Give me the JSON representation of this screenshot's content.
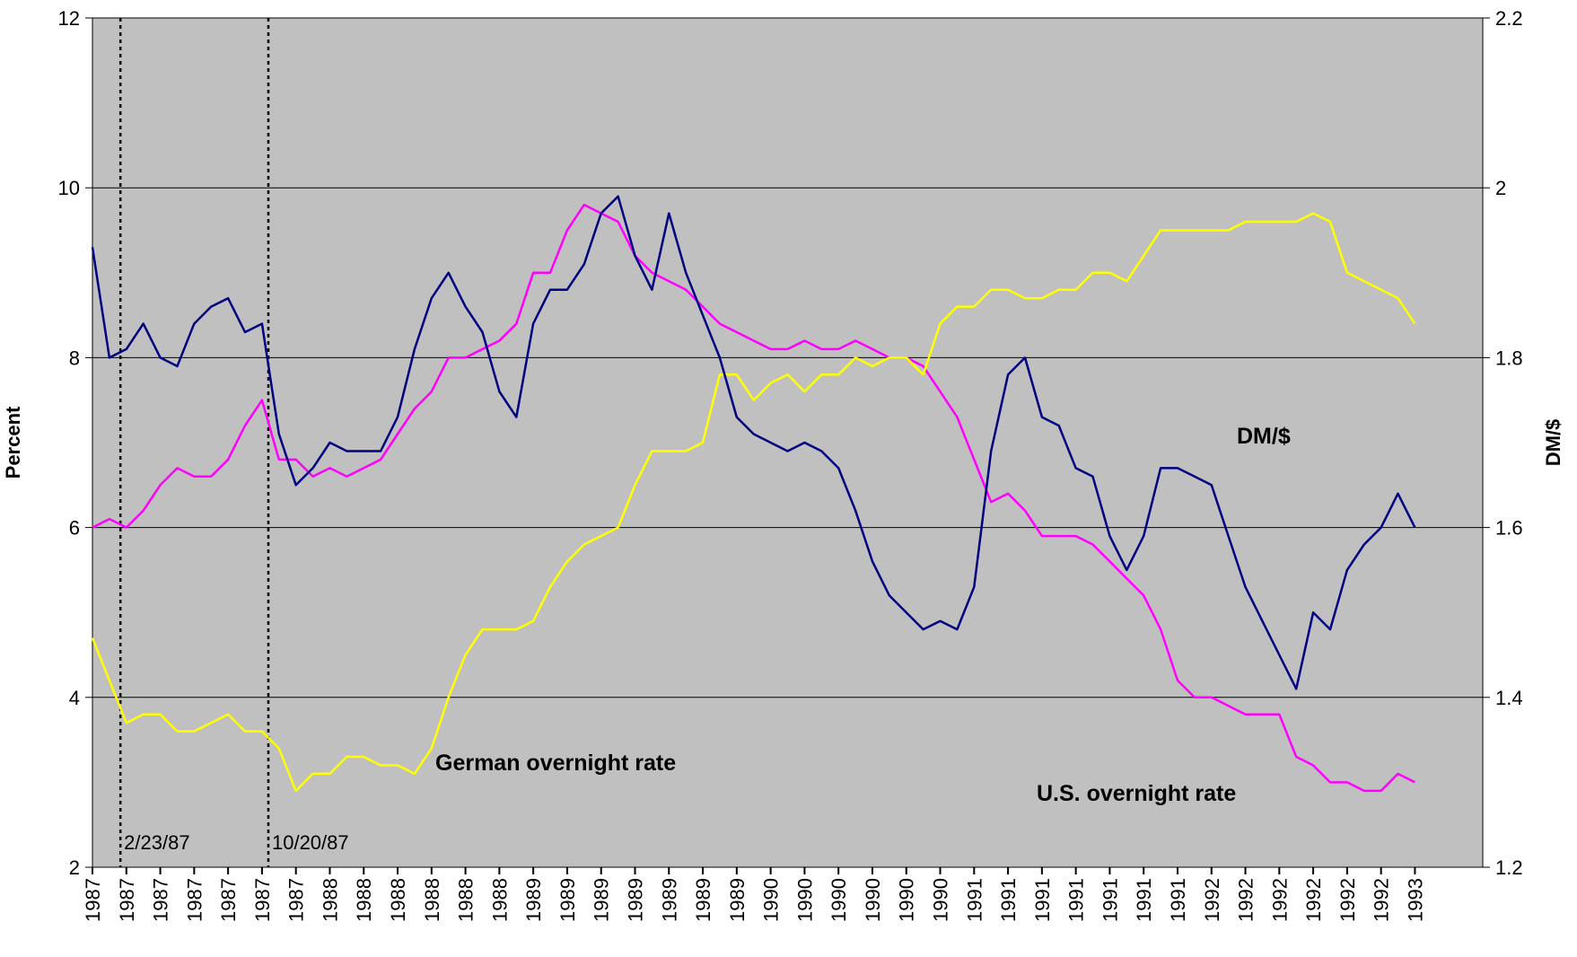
{
  "chart_data": {
    "type": "line",
    "y_label": "Percent",
    "y2_label": "DM/$",
    "x": [
      0,
      4,
      8,
      12,
      16,
      20,
      24,
      28,
      32,
      36,
      40,
      44,
      48,
      52,
      56,
      60,
      64,
      68,
      72,
      76,
      80,
      84,
      88,
      92,
      96,
      100,
      104,
      108,
      112,
      116,
      120,
      124,
      128,
      132,
      136,
      140,
      144,
      148,
      152,
      156,
      160,
      164,
      168,
      172,
      176,
      180,
      184,
      188,
      192,
      196,
      200,
      204,
      208,
      212,
      216,
      220,
      224,
      228,
      232,
      236,
      240,
      244,
      248,
      252,
      256,
      260,
      264,
      268,
      272,
      276,
      280,
      284,
      288,
      292,
      296,
      300,
      304,
      308,
      312
    ],
    "xlim": [
      0,
      328
    ],
    "xticks": [
      {
        "value": 0,
        "label": "1987"
      },
      {
        "value": 8,
        "label": "1987"
      },
      {
        "value": 16,
        "label": "1987"
      },
      {
        "value": 24,
        "label": "1987"
      },
      {
        "value": 32,
        "label": "1987"
      },
      {
        "value": 40,
        "label": "1987"
      },
      {
        "value": 48,
        "label": "1987"
      },
      {
        "value": 56,
        "label": "1988"
      },
      {
        "value": 64,
        "label": "1988"
      },
      {
        "value": 72,
        "label": "1988"
      },
      {
        "value": 80,
        "label": "1988"
      },
      {
        "value": 88,
        "label": "1988"
      },
      {
        "value": 96,
        "label": "1988"
      },
      {
        "value": 104,
        "label": "1989"
      },
      {
        "value": 112,
        "label": "1989"
      },
      {
        "value": 120,
        "label": "1989"
      },
      {
        "value": 128,
        "label": "1989"
      },
      {
        "value": 136,
        "label": "1989"
      },
      {
        "value": 144,
        "label": "1989"
      },
      {
        "value": 152,
        "label": "1989"
      },
      {
        "value": 160,
        "label": "1990"
      },
      {
        "value": 168,
        "label": "1990"
      },
      {
        "value": 176,
        "label": "1990"
      },
      {
        "value": 184,
        "label": "1990"
      },
      {
        "value": 192,
        "label": "1990"
      },
      {
        "value": 200,
        "label": "1990"
      },
      {
        "value": 208,
        "label": "1991"
      },
      {
        "value": 216,
        "label": "1991"
      },
      {
        "value": 224,
        "label": "1991"
      },
      {
        "value": 232,
        "label": "1991"
      },
      {
        "value": 240,
        "label": "1991"
      },
      {
        "value": 248,
        "label": "1991"
      },
      {
        "value": 256,
        "label": "1991"
      },
      {
        "value": 264,
        "label": "1992"
      },
      {
        "value": 272,
        "label": "1992"
      },
      {
        "value": 280,
        "label": "1992"
      },
      {
        "value": 288,
        "label": "1992"
      },
      {
        "value": 296,
        "label": "1992"
      },
      {
        "value": 304,
        "label": "1992"
      },
      {
        "value": 312,
        "label": "1993"
      }
    ],
    "ylim": [
      2,
      12
    ],
    "yticks": [
      2,
      4,
      6,
      8,
      10,
      12
    ],
    "y2lim": [
      1.2,
      2.2
    ],
    "y2ticks": [
      1.2,
      1.4,
      1.6,
      1.8,
      2,
      2.2
    ],
    "grid": true,
    "annotations": [
      {
        "text": "2/23/87",
        "x": 6.6
      },
      {
        "text": "10/20/87",
        "x": 41.5
      }
    ],
    "series": [
      {
        "name": "U.S. overnight rate",
        "color": "#ff00ff",
        "values": [
          6.0,
          6.1,
          6.0,
          6.2,
          6.5,
          6.7,
          6.6,
          6.6,
          6.8,
          7.2,
          7.5,
          6.8,
          6.8,
          6.6,
          6.7,
          6.6,
          6.7,
          6.8,
          7.1,
          7.4,
          7.6,
          8.0,
          8.0,
          8.1,
          8.2,
          8.4,
          9.0,
          9.0,
          9.5,
          9.8,
          9.7,
          9.6,
          9.2,
          9.0,
          8.9,
          8.8,
          8.6,
          8.4,
          8.3,
          8.2,
          8.1,
          8.1,
          8.2,
          8.1,
          8.1,
          8.2,
          8.1,
          8.0,
          8.0,
          7.9,
          7.6,
          7.3,
          6.8,
          6.3,
          6.4,
          6.2,
          5.9,
          5.9,
          5.9,
          5.8,
          5.6,
          5.4,
          5.2,
          4.8,
          4.2,
          4.0,
          4.0,
          3.9,
          3.8,
          3.8,
          3.8,
          3.3,
          3.2,
          3.0,
          3.0,
          2.9,
          2.9,
          3.1,
          3.0
        ]
      },
      {
        "name": "German overnight rate",
        "color": "#ffff00",
        "values": [
          4.7,
          4.2,
          3.7,
          3.8,
          3.8,
          3.6,
          3.6,
          3.7,
          3.8,
          3.6,
          3.6,
          3.4,
          2.9,
          3.1,
          3.1,
          3.3,
          3.3,
          3.2,
          3.2,
          3.1,
          3.4,
          4.0,
          4.5,
          4.8,
          4.8,
          4.8,
          4.9,
          5.3,
          5.6,
          5.8,
          5.9,
          6.0,
          6.5,
          6.9,
          6.9,
          6.9,
          7.0,
          7.8,
          7.8,
          7.5,
          7.7,
          7.8,
          7.6,
          7.8,
          7.8,
          8.0,
          7.9,
          8.0,
          8.0,
          7.8,
          8.4,
          8.6,
          8.6,
          8.8,
          8.8,
          8.7,
          8.7,
          8.8,
          8.8,
          9.0,
          9.0,
          8.9,
          9.2,
          9.5,
          9.5,
          9.5,
          9.5,
          9.5,
          9.6,
          9.6,
          9.6,
          9.6,
          9.7,
          9.6,
          9.0,
          8.9,
          8.8,
          8.7,
          8.4
        ]
      },
      {
        "name": "DM/$",
        "color": "#000080",
        "axis": "y2",
        "values": [
          1.93,
          1.8,
          1.81,
          1.84,
          1.8,
          1.79,
          1.84,
          1.86,
          1.87,
          1.83,
          1.84,
          1.71,
          1.65,
          1.67,
          1.7,
          1.69,
          1.69,
          1.69,
          1.73,
          1.81,
          1.87,
          1.9,
          1.86,
          1.83,
          1.76,
          1.73,
          1.84,
          1.88,
          1.88,
          1.91,
          1.97,
          1.99,
          1.92,
          1.88,
          1.97,
          1.9,
          1.85,
          1.8,
          1.73,
          1.71,
          1.7,
          1.69,
          1.7,
          1.69,
          1.67,
          1.62,
          1.56,
          1.52,
          1.5,
          1.48,
          1.49,
          1.48,
          1.53,
          1.69,
          1.78,
          1.8,
          1.73,
          1.72,
          1.67,
          1.66,
          1.59,
          1.55,
          1.59,
          1.67,
          1.67,
          1.66,
          1.65,
          1.59,
          1.53,
          1.49,
          1.45,
          1.41,
          1.5,
          1.48,
          1.55,
          1.58,
          1.6,
          1.64,
          1.6
        ]
      }
    ]
  }
}
